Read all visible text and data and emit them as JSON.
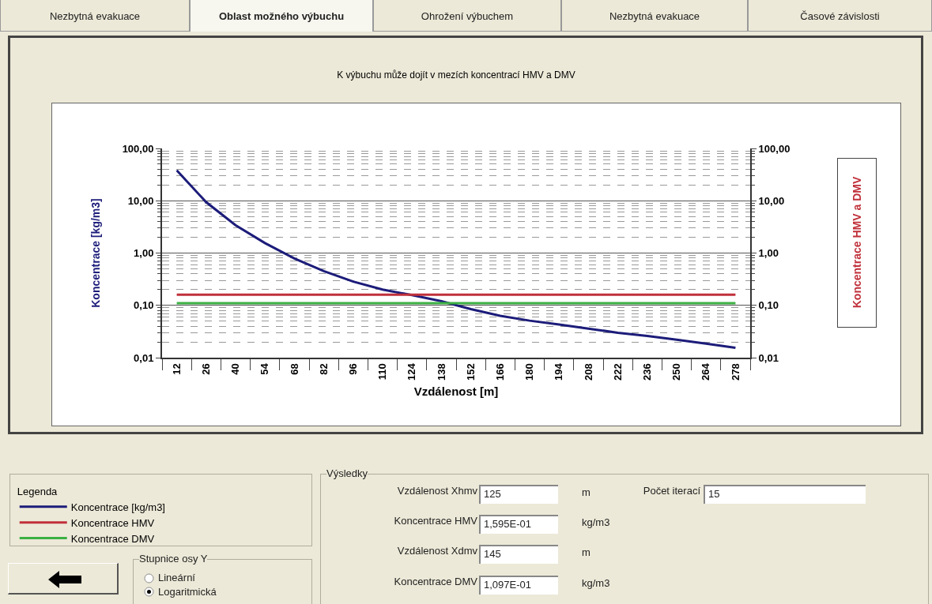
{
  "chart_data": {
    "type": "line",
    "title": "K výbuchu může dojít v mezích koncentrací HMV a DMV",
    "xlabel": "Vzdálenost [m]",
    "ylabel": "Koncentrace [kg/m3]",
    "legend_title": "Legenda",
    "categories": [
      "12",
      "26",
      "40",
      "54",
      "68",
      "82",
      "96",
      "110",
      "124",
      "138",
      "152",
      "166",
      "180",
      "194",
      "208",
      "222",
      "236",
      "250",
      "264",
      "278"
    ],
    "series": [
      {
        "name": "Koncentrace [kg/m3]",
        "color": "#1c1c7a",
        "values": [
          38,
          9.4,
          3.4,
          1.55,
          0.79,
          0.45,
          0.285,
          0.2,
          0.157,
          0.12,
          0.085,
          0.063,
          0.051,
          0.043,
          0.036,
          0.03,
          0.026,
          0.022,
          0.0186,
          0.0155
        ]
      },
      {
        "name": "Koncentrace HMV",
        "color": "#c0303a",
        "values": [
          0.1595,
          0.1595,
          0.1595,
          0.1595,
          0.1595,
          0.1595,
          0.1595,
          0.1595,
          0.1595,
          0.1595,
          0.1595,
          0.1595,
          0.1595,
          0.1595,
          0.1595,
          0.1595,
          0.1595,
          0.1595,
          0.1595,
          0.1595
        ]
      },
      {
        "name": "Koncentrace DMV",
        "color": "#3cb043",
        "values": [
          0.1097,
          0.1097,
          0.1097,
          0.1097,
          0.1097,
          0.1097,
          0.1097,
          0.1097,
          0.1097,
          0.1097,
          0.1097,
          0.1097,
          0.1097,
          0.1097,
          0.1097,
          0.1097,
          0.1097,
          0.1097,
          0.1097,
          0.1097
        ]
      }
    ],
    "log": "y",
    "ylim": [
      0.01,
      100
    ],
    "yticks": [
      {
        "value": 0.01,
        "label": "0,01"
      },
      {
        "value": 0.1,
        "label": "0,10"
      },
      {
        "value": 1,
        "label": "1,00"
      },
      {
        "value": 10,
        "label": "10,00"
      },
      {
        "value": 100,
        "label": "100,00"
      }
    ],
    "grid": "y",
    "legend": "bottom left",
    "marker": "none",
    "line_style": "solid",
    "annotations": [
      "Nezbytná evakuace",
      "Oblast možného výbuchu",
      "Ohrožení výbuchem",
      "Nezbytná evakuace",
      "Časové závislosti",
      "Výsledky",
      "Vzdálenost Xhmv",
      "125",
      "m",
      "Koncentrace HMV",
      "1,595E-01",
      "kg/m3",
      "Vzdálenost Xdmv",
      "145",
      "m",
      "Koncentrace DMV",
      "1,097E-01",
      "kg/m3",
      "Počet iterací",
      "15",
      "Stupnice osy Y",
      "Lineární",
      "Logaritmická",
      "Koncentrace HMV a DMV"
    ]
  }
}
